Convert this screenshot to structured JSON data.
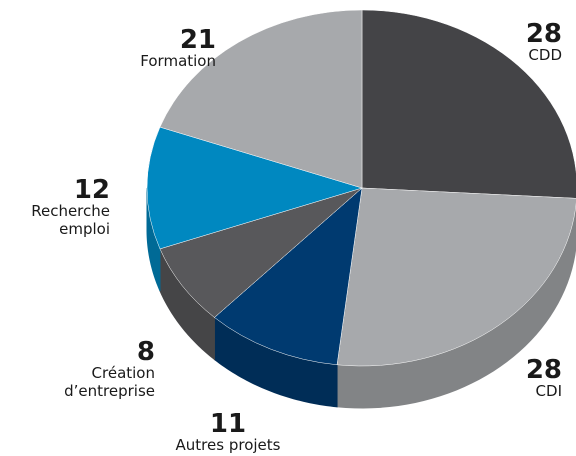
{
  "chart_data": {
    "type": "pie",
    "categories": [
      "CDD",
      "CDI",
      "Autres projets",
      "Création d’entreprise",
      "Recherche emploi",
      "Formation"
    ],
    "values": [
      28,
      28,
      11,
      8,
      12,
      21
    ],
    "colors": [
      "#444447",
      "#a7a9ac",
      "#003a70",
      "#58585b",
      "#0088c0",
      "#a7a9ac"
    ]
  }
}
